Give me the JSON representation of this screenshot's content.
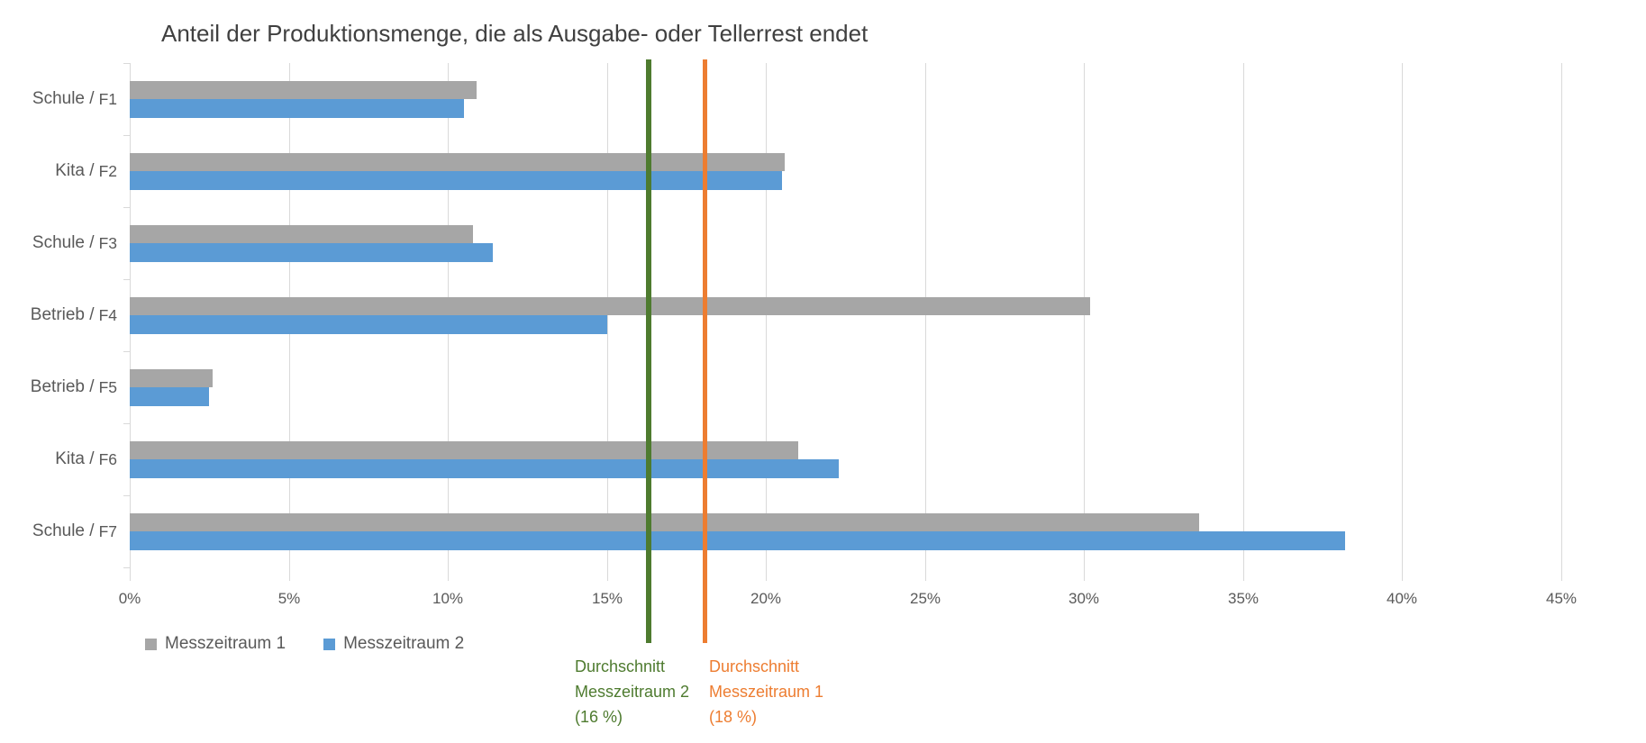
{
  "chart_data": {
    "type": "bar",
    "orientation": "horizontal",
    "title": "Anteil der Produktionsmenge, die als Ausgabe- oder Tellerrest endet",
    "categories": [
      {
        "prefix": "Schule /",
        "code": "F1"
      },
      {
        "prefix": "Kita /",
        "code": "F2"
      },
      {
        "prefix": "Schule /",
        "code": "F3"
      },
      {
        "prefix": "Betrieb /",
        "code": "F4"
      },
      {
        "prefix": "Betrieb /",
        "code": "F5"
      },
      {
        "prefix": "Kita /",
        "code": "F6"
      },
      {
        "prefix": "Schule /",
        "code": "F7"
      }
    ],
    "series": [
      {
        "name": "Messzeitraum 1",
        "color": "#a6a6a6",
        "values": [
          10.9,
          20.6,
          10.8,
          30.2,
          2.6,
          21.0,
          33.6
        ]
      },
      {
        "name": "Messzeitraum 2",
        "color": "#5b9bd5",
        "values": [
          10.5,
          20.5,
          11.4,
          15.0,
          2.5,
          22.3,
          38.2
        ]
      }
    ],
    "x_axis": {
      "min": 0,
      "max": 45,
      "step": 5,
      "unit": "%",
      "grid": true,
      "tick_labels": [
        "0%",
        "5%",
        "10%",
        "15%",
        "20%",
        "25%",
        "30%",
        "35%",
        "40%",
        "45%"
      ]
    },
    "reference_lines": [
      {
        "name": "Durchschnitt Messzeitraum 2",
        "value_pct": 16.3,
        "color": "#4e7b2f",
        "label_lines": [
          "Durchschnitt",
          "Messzeitraum 2",
          "(16 %)"
        ]
      },
      {
        "name": "Durchschnitt Messzeitraum 1",
        "value_pct": 18.1,
        "color": "#ed7d31",
        "label_lines": [
          "Durchschnitt",
          "Messzeitraum 1",
          "(18 %)"
        ]
      }
    ],
    "legend_position": "bottom-left",
    "ylim": [
      0,
      45
    ]
  }
}
